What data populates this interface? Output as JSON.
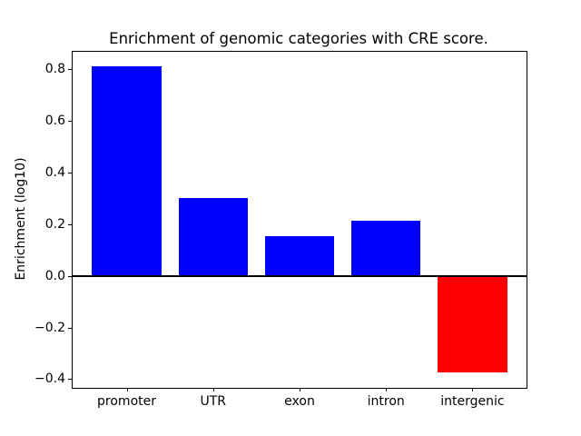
{
  "figure": {
    "background": "#ffffff"
  },
  "chart_data": {
    "type": "bar",
    "title": "Enrichment of genomic categories with CRE score.",
    "ylabel": "Enrichment (log10)",
    "xlabel": "",
    "categories": [
      "promoter",
      "UTR",
      "exon",
      "intron",
      "intergenic"
    ],
    "values": [
      0.81,
      0.3,
      0.155,
      0.215,
      -0.375
    ],
    "bar_colors": [
      "#0000ff",
      "#0000ff",
      "#0000ff",
      "#0000ff",
      "#ff0000"
    ],
    "positive_color": "#0000ff",
    "negative_color": "#ff0000",
    "bar_width": 0.8,
    "xlim": [
      -0.625,
      4.625
    ],
    "ylim": [
      -0.434,
      0.868
    ],
    "yticks": [
      -0.4,
      -0.2,
      0.0,
      0.2,
      0.4,
      0.6,
      0.8
    ],
    "ytick_labels": [
      "−0.4",
      "−0.2",
      "0.0",
      "0.2",
      "0.4",
      "0.6",
      "0.8"
    ],
    "zero_line": true,
    "zero_line_color": "#000000",
    "grid": false,
    "legend": false
  }
}
